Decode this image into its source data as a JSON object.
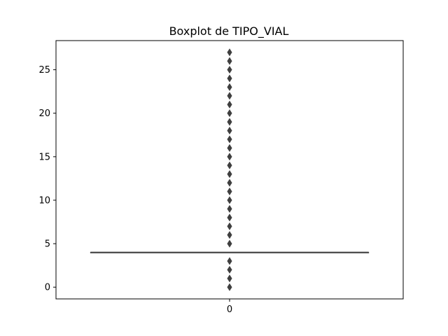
{
  "chart_data": {
    "type": "boxplot",
    "title": "Boxplot de TIPO_VIAL",
    "xlabel": "",
    "ylabel": "",
    "categories": [
      "0"
    ],
    "ylim": [
      -1.35,
      28.35
    ],
    "yticks": [
      0,
      5,
      10,
      15,
      20,
      25
    ],
    "grid": false,
    "box": {
      "q1": 4,
      "median": 4,
      "q3": 4,
      "whisker_low": 4,
      "whisker_high": 4
    },
    "outliers": [
      0,
      1,
      2,
      3,
      5,
      6,
      7,
      8,
      9,
      10,
      11,
      12,
      13,
      14,
      15,
      16,
      17,
      18,
      19,
      20,
      21,
      22,
      23,
      24,
      25,
      26,
      27
    ],
    "colors": {
      "box_line": "#3f3f3f",
      "outlier_fill": "#3f3f3f",
      "axes": "#000000"
    }
  }
}
